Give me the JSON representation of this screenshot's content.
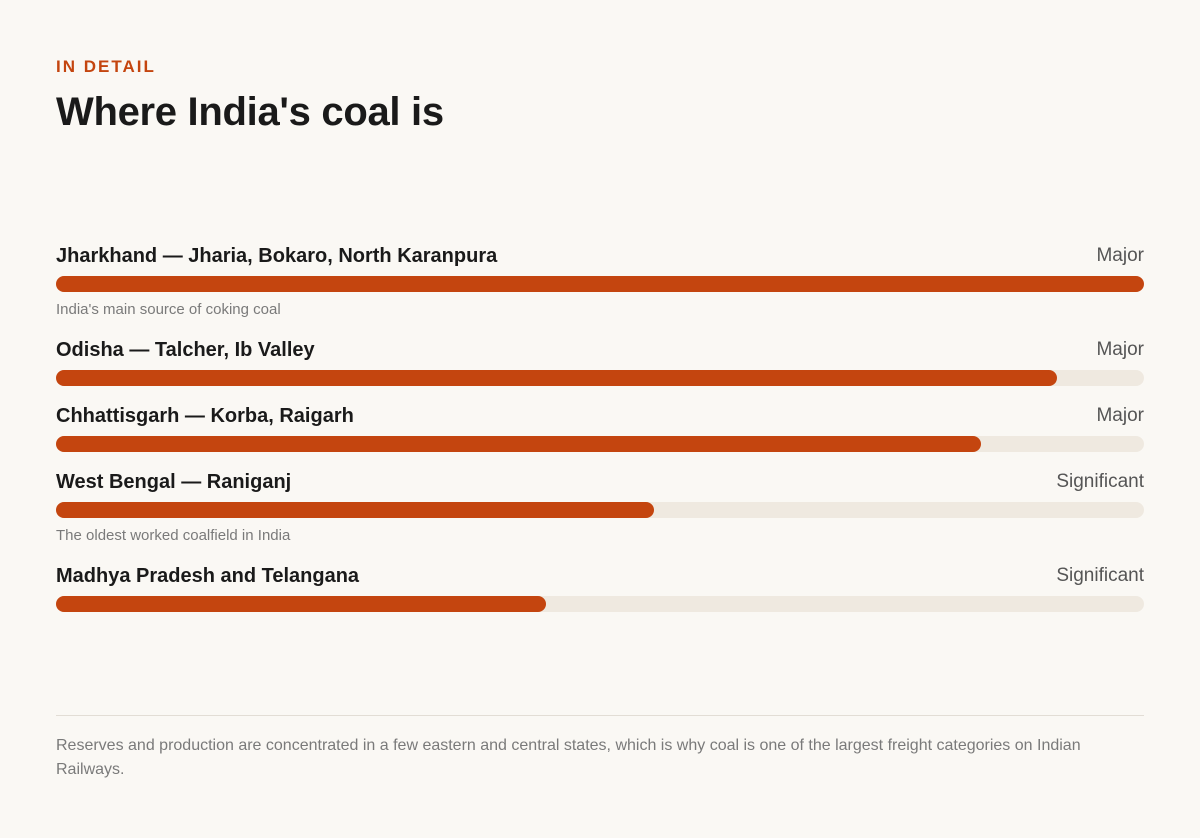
{
  "eyebrow": "IN DETAIL",
  "chart_data": {
    "type": "bar",
    "orientation": "horizontal",
    "title": "Where India's coal is",
    "categories": [
      "Jharkhand — Jharia, Bokaro, North Karanpura",
      "Odisha — Talcher, Ib Valley",
      "Chhattisgarh — Korba, Raigarh",
      "West Bengal — Raniganj",
      "Madhya Pradesh and Telangana"
    ],
    "values": [
      100,
      92,
      85,
      55,
      45
    ],
    "ratings": [
      "Major",
      "Major",
      "Major",
      "Significant",
      "Significant"
    ],
    "notes": [
      "India's main source of coking coal",
      null,
      null,
      "The oldest worked coalfield in India",
      null
    ],
    "xlim": [
      0,
      100
    ],
    "color": "#c4450f",
    "track_color": "#efe9e0"
  },
  "footnote": "Reserves and production are concentrated in a few eastern and central states, which is why coal is one of the largest freight categories on Indian Railways."
}
